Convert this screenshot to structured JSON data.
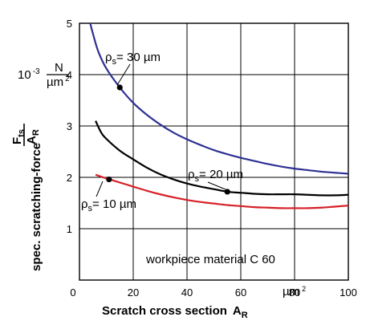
{
  "chart_data": {
    "type": "line",
    "x_axis": {
      "title": "Scratch cross section",
      "symbol": "A",
      "symbol_sub": "R",
      "range": [
        0,
        100
      ],
      "ticks": [
        "0",
        "20",
        "40",
        "60",
        "80",
        "100"
      ],
      "unit_label": "µm",
      "unit_exp": "2"
    },
    "y_axis": {
      "title": "spec. scratching-force",
      "range": [
        0,
        5
      ],
      "ticks": [
        "1",
        "2",
        "3",
        "4",
        "5"
      ],
      "unit_prefix": "10",
      "unit_prefix_exp": "-3",
      "unit_num": "N",
      "unit_den": "µm",
      "unit_den_exp": "2",
      "frac_num_symbol": "F",
      "frac_num_sub": "ts",
      "frac_den_symbol": "A",
      "frac_den_sub": "R"
    },
    "grid": true,
    "series": [
      {
        "name": "ρs= 30 µm",
        "label_prefix": "ρ",
        "label_sub": "s",
        "label_rest": "= 30 µm",
        "color": "#2e3192",
        "x": [
          4,
          5,
          7,
          10,
          15,
          20,
          25,
          30,
          35,
          40,
          45,
          50,
          55,
          60,
          65,
          70,
          75,
          80,
          85,
          90,
          95,
          100
        ],
        "y": [
          5.0,
          4.8,
          4.45,
          4.12,
          3.75,
          3.45,
          3.22,
          3.03,
          2.87,
          2.74,
          2.63,
          2.53,
          2.45,
          2.38,
          2.32,
          2.26,
          2.21,
          2.17,
          2.14,
          2.11,
          2.09,
          2.07
        ],
        "marker_x": 15,
        "marker_y": 3.75
      },
      {
        "name": "ρs= 20 µm",
        "label_prefix": "ρ",
        "label_sub": "s",
        "label_rest": "= 20 µm",
        "color": "#000000",
        "x": [
          6,
          8,
          10,
          15,
          20,
          25,
          30,
          35,
          40,
          45,
          50,
          55,
          60,
          65,
          70,
          75,
          80,
          85,
          90,
          95,
          100
        ],
        "y": [
          3.1,
          2.88,
          2.75,
          2.52,
          2.35,
          2.19,
          2.06,
          1.96,
          1.88,
          1.82,
          1.77,
          1.72,
          1.7,
          1.68,
          1.67,
          1.67,
          1.67,
          1.66,
          1.65,
          1.65,
          1.66
        ],
        "marker_x": 55,
        "marker_y": 1.72
      },
      {
        "name": "ρs= 10 µm",
        "label_prefix": "ρ",
        "label_sub": "s",
        "label_rest": "= 10 µm",
        "color": "#d62027",
        "x": [
          6,
          10,
          15,
          20,
          25,
          30,
          35,
          40,
          45,
          50,
          55,
          60,
          65,
          70,
          75,
          80,
          85,
          90,
          95,
          100
        ],
        "y": [
          2.05,
          1.98,
          1.9,
          1.82,
          1.74,
          1.67,
          1.61,
          1.56,
          1.52,
          1.49,
          1.46,
          1.44,
          1.42,
          1.41,
          1.4,
          1.4,
          1.4,
          1.41,
          1.43,
          1.45
        ],
        "marker_x": 11,
        "marker_y": 1.96
      }
    ],
    "annotation": "workpiece material  C 60"
  }
}
